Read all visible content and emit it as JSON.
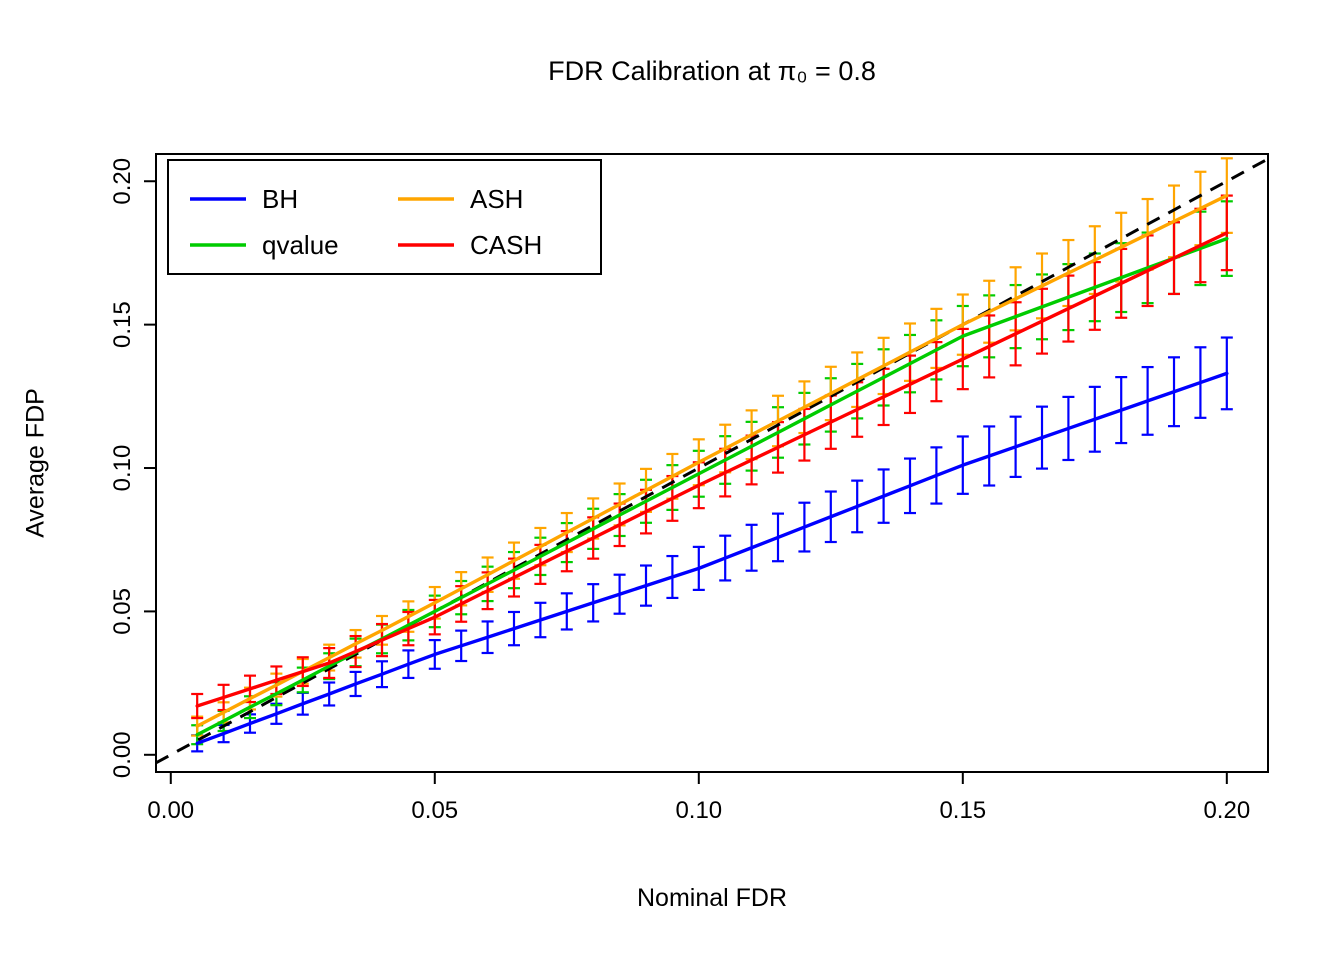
{
  "chart_data": {
    "type": "line",
    "title": "FDR Calibration at π₀ = 0.8",
    "xlabel": "Nominal FDR",
    "ylabel": "Average FDP",
    "xlim": [
      -0.0028,
      0.2078
    ],
    "ylim": [
      -0.006,
      0.2095
    ],
    "grid": false,
    "legend_position": "top-left",
    "x_ticks": [
      {
        "value": 0.0,
        "label": "0.00"
      },
      {
        "value": 0.05,
        "label": "0.05"
      },
      {
        "value": 0.1,
        "label": "0.10"
      },
      {
        "value": 0.15,
        "label": "0.15"
      },
      {
        "value": 0.2,
        "label": "0.20"
      }
    ],
    "y_ticks": [
      {
        "value": 0.0,
        "label": "0.00"
      },
      {
        "value": 0.05,
        "label": "0.05"
      },
      {
        "value": 0.1,
        "label": "0.10"
      },
      {
        "value": 0.15,
        "label": "0.15"
      },
      {
        "value": 0.2,
        "label": "0.20"
      }
    ],
    "reference_line": {
      "type": "identity",
      "style": "dashed",
      "color": "#000000"
    },
    "x": [
      0.005,
      0.01,
      0.015,
      0.02,
      0.025,
      0.03,
      0.035,
      0.04,
      0.045,
      0.05,
      0.055,
      0.06,
      0.065,
      0.07,
      0.075,
      0.08,
      0.085,
      0.09,
      0.095,
      0.1,
      0.105,
      0.11,
      0.115,
      0.12,
      0.125,
      0.13,
      0.135,
      0.14,
      0.145,
      0.15,
      0.155,
      0.16,
      0.165,
      0.17,
      0.175,
      0.18,
      0.185,
      0.19,
      0.195,
      0.2
    ],
    "series": [
      {
        "name": "BH",
        "color": "#0000FF",
        "values": [
          0.004,
          0.0074,
          0.0109,
          0.0143,
          0.0178,
          0.0212,
          0.0247,
          0.0281,
          0.0316,
          0.035,
          0.038,
          0.041,
          0.044,
          0.047,
          0.05,
          0.053,
          0.056,
          0.059,
          0.062,
          0.065,
          0.0686,
          0.0722,
          0.0758,
          0.0794,
          0.083,
          0.0866,
          0.0902,
          0.0938,
          0.0974,
          0.101,
          0.1042,
          0.1074,
          0.1106,
          0.1138,
          0.117,
          0.1202,
          0.1234,
          0.1266,
          0.1298,
          0.133
        ],
        "errors": [
          0.0028,
          0.003,
          0.0032,
          0.0035,
          0.0038,
          0.004,
          0.0042,
          0.0045,
          0.0048,
          0.005,
          0.0053,
          0.0055,
          0.0058,
          0.006,
          0.0063,
          0.0065,
          0.0068,
          0.007,
          0.0073,
          0.0075,
          0.0078,
          0.008,
          0.0083,
          0.0085,
          0.0088,
          0.009,
          0.0093,
          0.0095,
          0.0098,
          0.01,
          0.0103,
          0.0105,
          0.0108,
          0.011,
          0.0113,
          0.0115,
          0.0118,
          0.012,
          0.0123,
          0.0125
        ]
      },
      {
        "name": "qvalue",
        "color": "#00CC00",
        "values": [
          0.007,
          0.0118,
          0.0166,
          0.0213,
          0.0261,
          0.0309,
          0.0357,
          0.0404,
          0.0452,
          0.05,
          0.0548,
          0.0596,
          0.0644,
          0.0692,
          0.074,
          0.0788,
          0.0836,
          0.0884,
          0.0932,
          0.098,
          0.1028,
          0.1076,
          0.1124,
          0.1172,
          0.122,
          0.1268,
          0.1316,
          0.1364,
          0.1412,
          0.146,
          0.1494,
          0.1528,
          0.1562,
          0.1596,
          0.163,
          0.1664,
          0.1698,
          0.1732,
          0.1766,
          0.18
        ],
        "errors": [
          0.0033,
          0.0035,
          0.0038,
          0.004,
          0.0043,
          0.0045,
          0.0048,
          0.005,
          0.0053,
          0.0055,
          0.0058,
          0.006,
          0.0063,
          0.0065,
          0.0068,
          0.007,
          0.0073,
          0.0075,
          0.0078,
          0.008,
          0.0083,
          0.0085,
          0.0088,
          0.009,
          0.0093,
          0.0095,
          0.0098,
          0.01,
          0.0103,
          0.0105,
          0.0108,
          0.011,
          0.0113,
          0.0115,
          0.0118,
          0.012,
          0.0123,
          0.0125,
          0.0128,
          0.013
        ]
      },
      {
        "name": "ASH",
        "color": "#FFA500",
        "values": [
          0.01,
          0.0148,
          0.0196,
          0.0243,
          0.0291,
          0.0339,
          0.0387,
          0.0434,
          0.0482,
          0.053,
          0.0579,
          0.0628,
          0.0677,
          0.0726,
          0.0775,
          0.0824,
          0.0873,
          0.0922,
          0.0971,
          0.102,
          0.1068,
          0.1116,
          0.1164,
          0.1212,
          0.126,
          0.1308,
          0.1356,
          0.1404,
          0.1452,
          0.15,
          0.1545,
          0.159,
          0.1635,
          0.168,
          0.1725,
          0.177,
          0.1815,
          0.186,
          0.1905,
          0.195
        ],
        "errors": [
          0.0033,
          0.0035,
          0.0038,
          0.004,
          0.0043,
          0.0045,
          0.0048,
          0.005,
          0.0053,
          0.0055,
          0.0058,
          0.006,
          0.0063,
          0.0065,
          0.0068,
          0.007,
          0.0073,
          0.0075,
          0.0078,
          0.008,
          0.0083,
          0.0085,
          0.0088,
          0.009,
          0.0093,
          0.0095,
          0.0098,
          0.01,
          0.0103,
          0.0105,
          0.0108,
          0.011,
          0.0113,
          0.0115,
          0.0118,
          0.012,
          0.0123,
          0.0125,
          0.0128,
          0.013
        ]
      },
      {
        "name": "CASH",
        "color": "#FF0000",
        "values": [
          0.017,
          0.02,
          0.023,
          0.026,
          0.029,
          0.032,
          0.036,
          0.04,
          0.044,
          0.048,
          0.0526,
          0.0572,
          0.0618,
          0.0664,
          0.071,
          0.0756,
          0.0802,
          0.0848,
          0.0894,
          0.094,
          0.0984,
          0.1028,
          0.1072,
          0.1116,
          0.116,
          0.1204,
          0.1248,
          0.1292,
          0.1336,
          0.138,
          0.1424,
          0.1468,
          0.1512,
          0.1556,
          0.16,
          0.1644,
          0.1688,
          0.1732,
          0.1776,
          0.182
        ],
        "errors": [
          0.0042,
          0.0044,
          0.0046,
          0.0048,
          0.005,
          0.0052,
          0.0054,
          0.0056,
          0.0058,
          0.006,
          0.0062,
          0.0064,
          0.0066,
          0.0068,
          0.007,
          0.0072,
          0.0074,
          0.0076,
          0.0078,
          0.008,
          0.0083,
          0.0085,
          0.0088,
          0.009,
          0.0093,
          0.0095,
          0.0098,
          0.01,
          0.0103,
          0.0105,
          0.0108,
          0.011,
          0.0113,
          0.0115,
          0.0118,
          0.012,
          0.0123,
          0.0125,
          0.0128,
          0.013
        ]
      }
    ]
  }
}
